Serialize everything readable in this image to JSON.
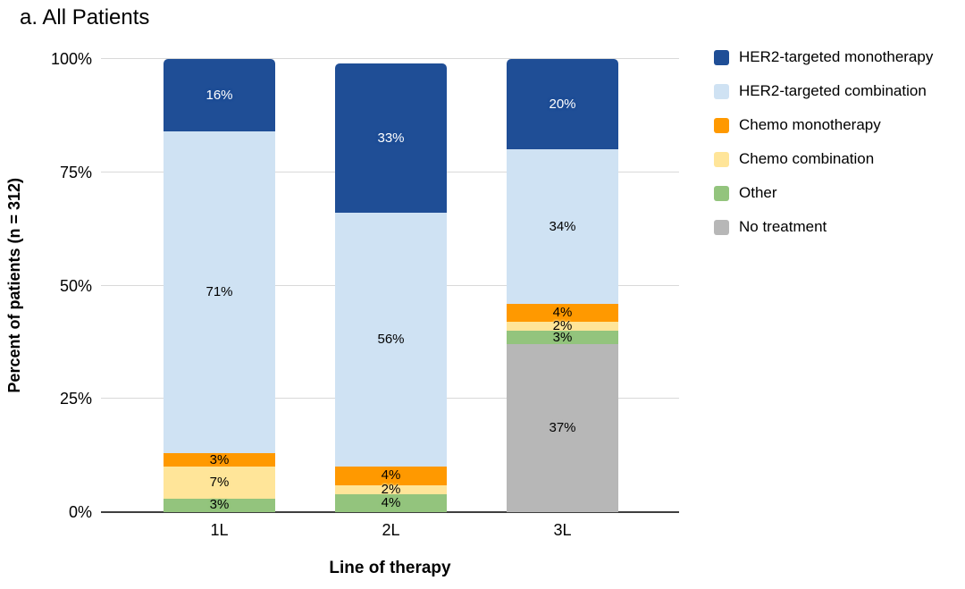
{
  "chart_data": {
    "type": "bar",
    "stacked": true,
    "orientation": "vertical",
    "title": "a. All Patients",
    "xlabel": "Line of therapy",
    "ylabel": "Percent of patients (n = 312)",
    "categories": [
      "1L",
      "2L",
      "3L"
    ],
    "series": [
      {
        "name": "HER2-targeted monotherapy",
        "color": "#1f4e96",
        "label_color": "#ffffff",
        "values": [
          16,
          33,
          20
        ]
      },
      {
        "name": "HER2-targeted combination",
        "color": "#cfe2f3",
        "label_color": "#000000",
        "values": [
          71,
          56,
          34
        ]
      },
      {
        "name": "Chemo monotherapy",
        "color": "#ff9900",
        "label_color": "#000000",
        "values": [
          3,
          4,
          4
        ]
      },
      {
        "name": "Chemo combination",
        "color": "#ffe599",
        "label_color": "#000000",
        "values": [
          7,
          2,
          2
        ]
      },
      {
        "name": "Other",
        "color": "#93c47d",
        "label_color": "#000000",
        "values": [
          3,
          4,
          3
        ]
      },
      {
        "name": "No treatment",
        "color": "#b7b7b7",
        "label_color": "#000000",
        "values": [
          0,
          0,
          37
        ]
      }
    ],
    "value_suffix": "%",
    "yticks": [
      "0%",
      "25%",
      "50%",
      "75%",
      "100%"
    ],
    "ylim": [
      0,
      100
    ],
    "grid": true,
    "grid_color": "#d9d9d9",
    "axis_line_color": "#3f3f3f",
    "legend_position": "right"
  }
}
